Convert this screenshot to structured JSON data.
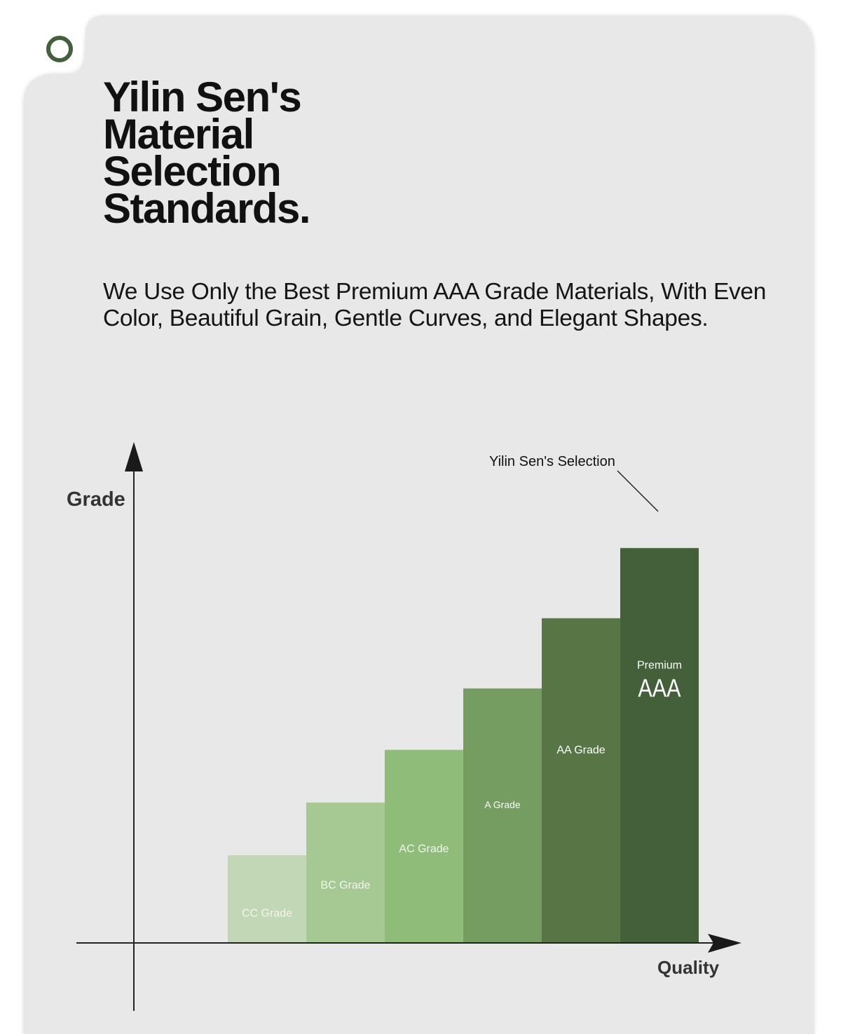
{
  "page": {
    "title": "Yilin Sen's Material Selection Standards.",
    "title_lines": [
      "Yilin Sen's",
      "Material",
      "Selection",
      "Standards."
    ],
    "subtitle_lines": [
      "We Use Only the Best Premium AAA Grade Materials, With Even",
      "Color, Beautiful Grain, Gentle Curves, and Elegant Shapes."
    ],
    "background": "#e8e8e8",
    "accent": "#44603a"
  },
  "chart_data": {
    "type": "bar",
    "ylabel": "Grade",
    "xlabel": "Quality",
    "callout": "Yilin Sen's Selection",
    "categories": [
      "CC Grade",
      "BC Grade",
      "AC Grade",
      "A Grade",
      "AA Grade",
      "Premium AAA"
    ],
    "bar_labels": [
      {
        "text": "CC Grade"
      },
      {
        "text": "BC Grade"
      },
      {
        "text": "AC Grade"
      },
      {
        "text": "A Grade"
      },
      {
        "text": "AA Grade"
      },
      {
        "text": "Premium",
        "big": "AAA"
      }
    ],
    "values": [
      1,
      1.6,
      2.2,
      2.9,
      3.7,
      4.5
    ],
    "ylim": [
      0,
      5.7
    ],
    "colors": [
      "#c1d7b5",
      "#a6c993",
      "#8fbd79",
      "#759c61",
      "#587545",
      "#44603a"
    ],
    "label_colors": [
      "#f2f6ef",
      "#f2f6ef",
      "#f2f6ef",
      "#ffffff",
      "#ffffff",
      "#ffffff"
    ],
    "highlight_index": 5,
    "grid": false,
    "legend": "none"
  }
}
